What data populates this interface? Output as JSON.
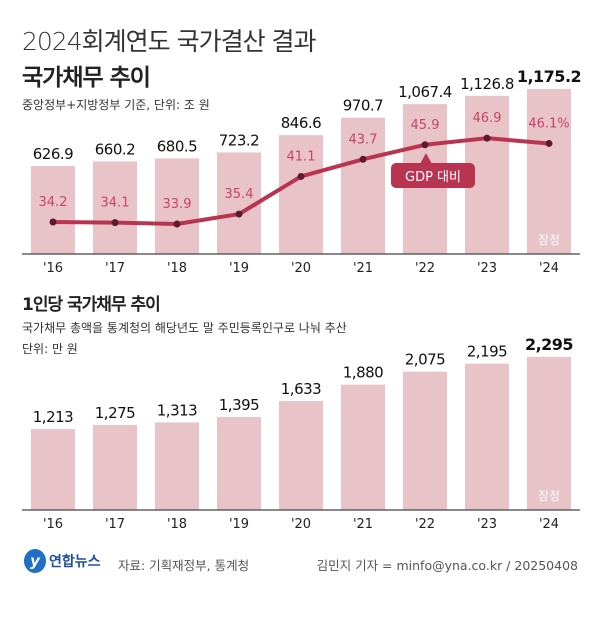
{
  "header": {
    "title": "2024회계연도 국가결산 결과",
    "chart1_title": "국가채무 추이",
    "chart1_subtitle": "중앙정부+지방정부 기준, 단위: 조 원",
    "chart2_title": "1인당 국가채무 추이",
    "chart2_subtitle": "국가채무 총액을 통계청의 해당년도 말 주민등록인구로 나눠 추산",
    "chart2_unit": "단위: 만 원"
  },
  "chart_data": [
    {
      "type": "bar",
      "title": "국가채무 추이",
      "categories": [
        "'16",
        "'17",
        "'18",
        "'19",
        "'20",
        "'21",
        "'22",
        "'23",
        "'24"
      ],
      "values": [
        626.9,
        660.2,
        680.5,
        723.2,
        846.6,
        970.7,
        1067.4,
        1126.8,
        1175.2
      ],
      "value_labels": [
        "626.9",
        "660.2",
        "680.5",
        "723.2",
        "846.6",
        "970.7",
        "1,067.4",
        "1,126.8",
        "1,175.2"
      ],
      "ylim": [
        0,
        1175.2
      ],
      "last_bar_note": "잠정",
      "line_series": {
        "name": "GDP 대비",
        "values": [
          34.2,
          34.1,
          33.9,
          35.4,
          41.1,
          43.7,
          45.9,
          46.9,
          46.1
        ],
        "value_labels": [
          "34.2",
          "34.1",
          "33.9",
          "35.4",
          "41.1",
          "43.7",
          "45.9",
          "46.9",
          "46.1%"
        ]
      },
      "colors": {
        "bar": "#e8c3c8",
        "line": "#b83552",
        "dot": "#5c1a2c",
        "line_label": "#c8446a"
      }
    },
    {
      "type": "bar",
      "title": "1인당 국가채무 추이",
      "categories": [
        "'16",
        "'17",
        "'18",
        "'19",
        "'20",
        "'21",
        "'22",
        "'23",
        "'24"
      ],
      "values": [
        1213,
        1275,
        1313,
        1395,
        1633,
        1880,
        2075,
        2195,
        2295
      ],
      "value_labels": [
        "1,213",
        "1,275",
        "1,313",
        "1,395",
        "1,633",
        "1,880",
        "2,075",
        "2,195",
        "2,295"
      ],
      "ylim": [
        0,
        2295
      ],
      "last_bar_note": "잠정",
      "colors": {
        "bar": "#e8c3c8"
      }
    }
  ],
  "footer": {
    "logo_text": "연합뉴스",
    "source": "자료: 기획재정부, 통계청",
    "credit": "김민지 기자 = minfo@yna.co.kr / 20250408"
  }
}
